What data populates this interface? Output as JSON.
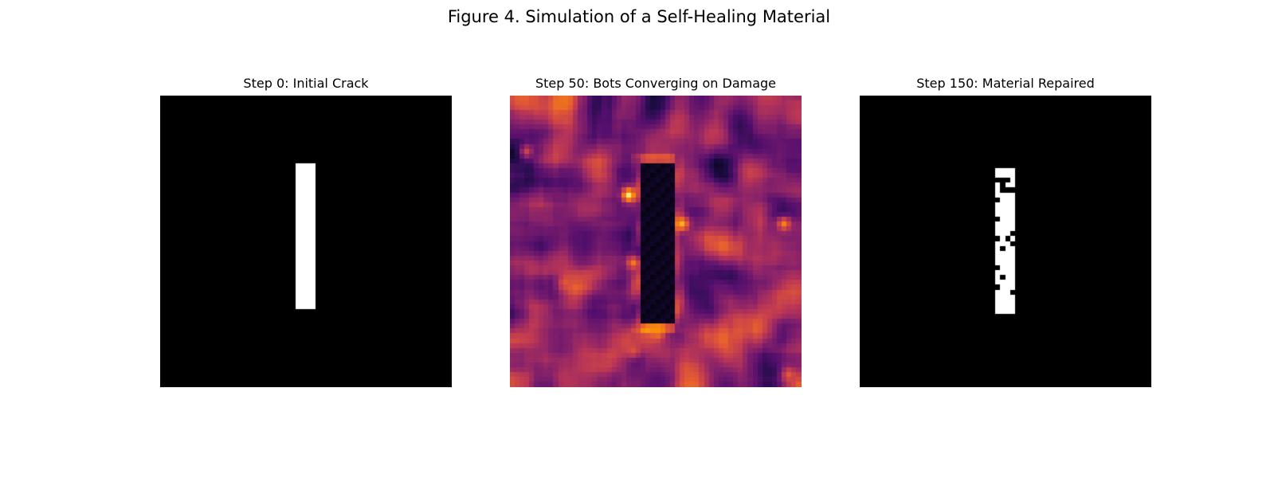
{
  "figure": {
    "title": "Figure 4. Simulation of a Self-Healing Material"
  },
  "colors": {
    "background": "#ffffff",
    "binary_low": "#000000",
    "binary_high": "#ffffff",
    "heatmap_colormap": "inferno"
  },
  "chart_data": [
    {
      "type": "heatmap",
      "title": "Step 0: Initial Crack",
      "colormap": "gray",
      "grid_size": [
        30,
        30
      ],
      "axes_visible": false,
      "crack_region": {
        "rows": [
          7,
          21
        ],
        "cols": [
          14,
          15
        ]
      },
      "crack_value": 1,
      "background_value": 0
    },
    {
      "type": "heatmap",
      "title": "Step 50: Bots Converging on Damage",
      "colormap": "inferno",
      "grid_size": [
        60,
        60
      ],
      "axes_visible": false,
      "value_range": [
        0,
        1
      ],
      "crack_region": {
        "rows": [
          14,
          46
        ],
        "cols": [
          27,
          33
        ]
      },
      "crack_value": 0.03,
      "background_mean": 0.35,
      "edge_value_peak": 0.95
    },
    {
      "type": "heatmap",
      "title": "Step 150: Material Repaired",
      "colormap": "gray",
      "grid_size": [
        60,
        60
      ],
      "axes_visible": false,
      "filled_region": {
        "rows": [
          15,
          44
        ],
        "cols": [
          28,
          31
        ]
      },
      "fill_fraction": 0.85
    }
  ]
}
